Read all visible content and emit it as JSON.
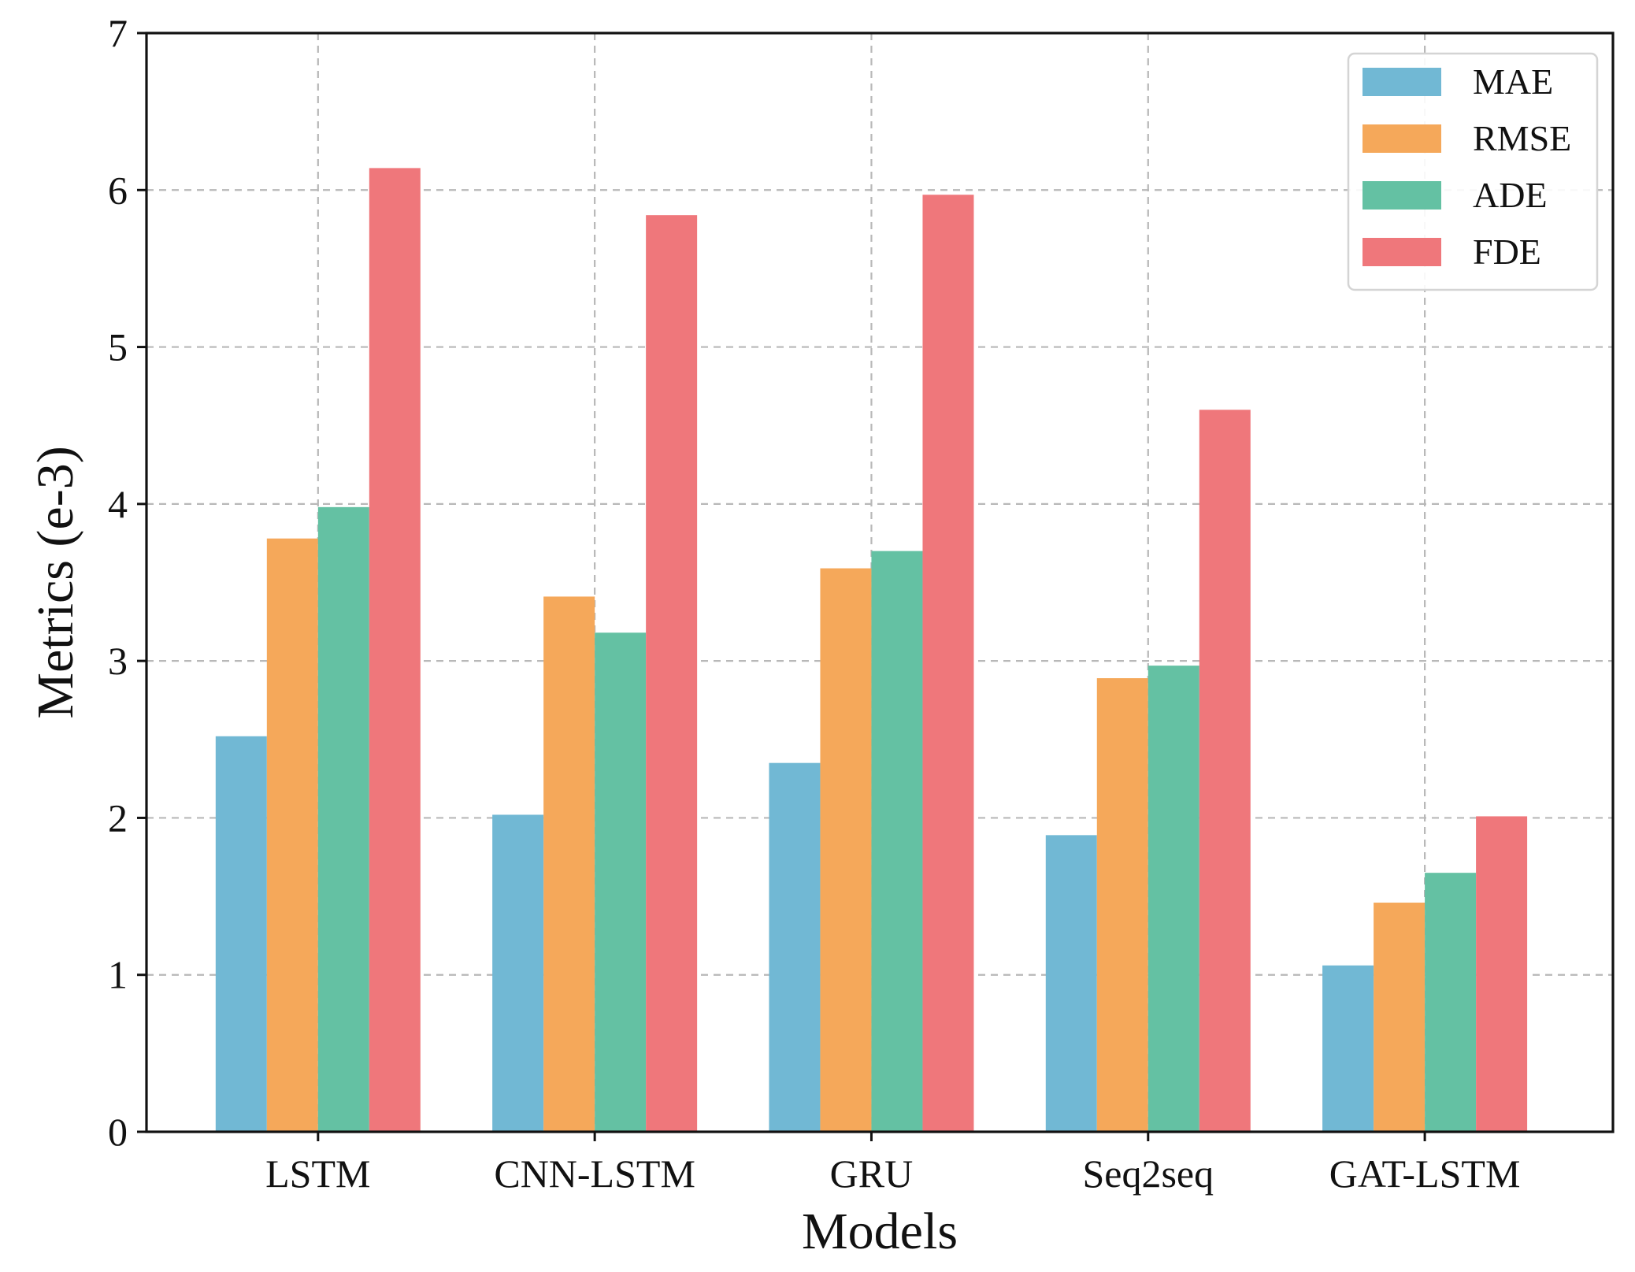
{
  "chart_data": {
    "type": "bar",
    "title": "",
    "xlabel": "Models",
    "ylabel": "Metrics (e-3)",
    "ylim": [
      0,
      7
    ],
    "yticks": [
      0,
      1,
      2,
      3,
      4,
      5,
      6,
      7
    ],
    "grid": true,
    "legend_position": "top-right",
    "categories": [
      "LSTM",
      "CNN-LSTM",
      "GRU",
      "Seq2seq",
      "GAT-LSTM"
    ],
    "series": [
      {
        "name": "MAE",
        "color": "#71b8d4",
        "values": [
          2.52,
          2.02,
          2.35,
          1.89,
          1.06
        ]
      },
      {
        "name": "RMSE",
        "color": "#f5a85a",
        "values": [
          3.78,
          3.41,
          3.59,
          2.89,
          1.46
        ]
      },
      {
        "name": "ADE",
        "color": "#64c1a3",
        "values": [
          3.98,
          3.18,
          3.7,
          2.97,
          1.65
        ]
      },
      {
        "name": "FDE",
        "color": "#ef777b",
        "values": [
          6.14,
          5.84,
          5.97,
          4.6,
          2.01
        ]
      }
    ]
  }
}
